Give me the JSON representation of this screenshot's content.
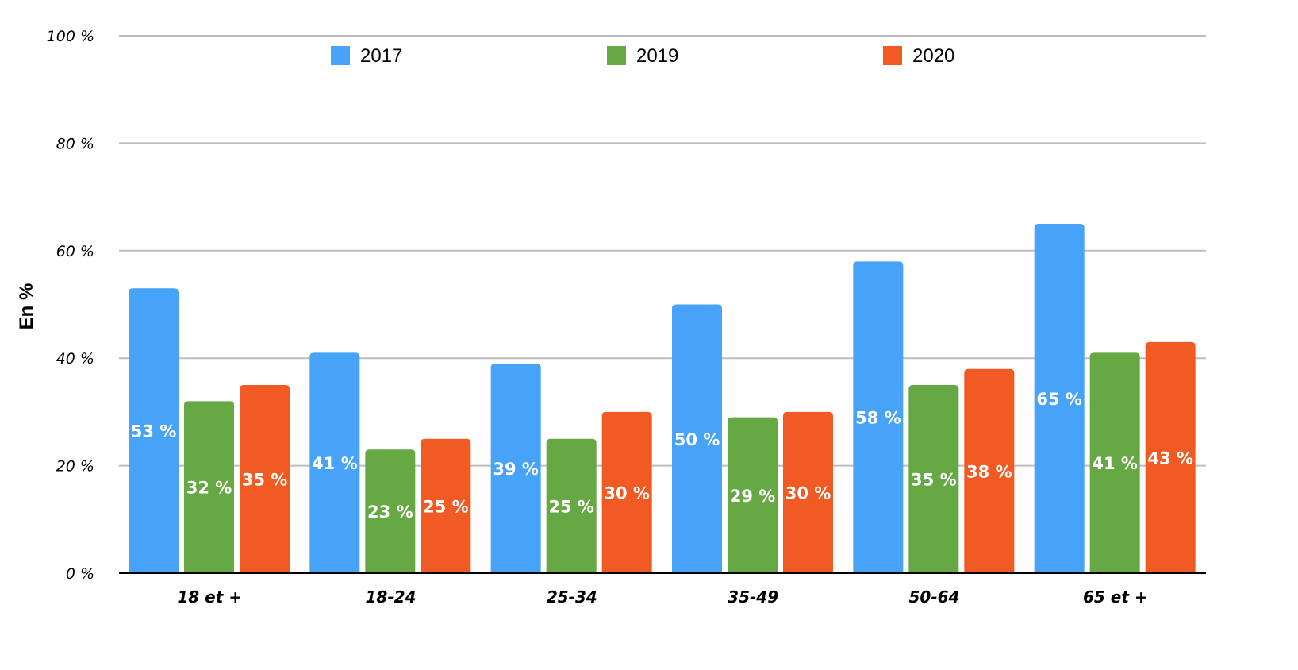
{
  "chart_data": {
    "type": "bar",
    "title": "",
    "xlabel": "",
    "ylabel": "En %",
    "ylim": [
      0,
      100
    ],
    "yticks": [
      0,
      20,
      40,
      60,
      80,
      100
    ],
    "ytick_labels": [
      "0 %",
      "20 %",
      "40 %",
      "60 %",
      "80 %",
      "100 %"
    ],
    "grid": true,
    "legend_position": "top-center",
    "categories": [
      "18 et +",
      "18-24",
      "25-34",
      "35-49",
      "50-64",
      "65 et +"
    ],
    "series": [
      {
        "name": "2017",
        "color": "#46a3f8",
        "values": [
          53,
          41,
          39,
          50,
          58,
          65
        ],
        "labels": [
          "53 %",
          "41 %",
          "39 %",
          "50 %",
          "58 %",
          "65 %"
        ]
      },
      {
        "name": "2019",
        "color": "#66a844",
        "values": [
          32,
          23,
          25,
          29,
          35,
          41
        ],
        "labels": [
          "32 %",
          "23 %",
          "25 %",
          "29 %",
          "35 %",
          "41 %"
        ]
      },
      {
        "name": "2020",
        "color": "#f15a22",
        "values": [
          35,
          25,
          30,
          30,
          38,
          43
        ],
        "labels": [
          "35 %",
          "25 %",
          "30 %",
          "30 %",
          "38 %",
          "43 %"
        ]
      }
    ]
  }
}
